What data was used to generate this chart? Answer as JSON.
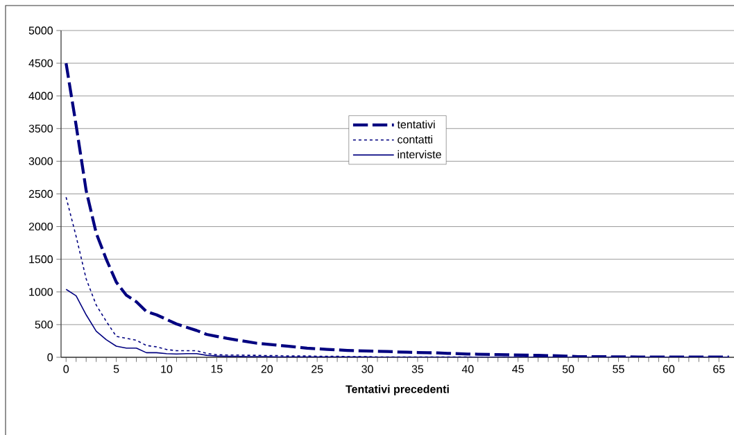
{
  "chart_data": {
    "type": "line",
    "xlabel": "Tentativi precedenti",
    "x": [
      0,
      1,
      2,
      3,
      4,
      5,
      6,
      7,
      8,
      9,
      10,
      11,
      12,
      13,
      14,
      15,
      16,
      17,
      18,
      19,
      20,
      21,
      22,
      23,
      24,
      25,
      26,
      27,
      28,
      29,
      30,
      31,
      32,
      33,
      34,
      35,
      36,
      37,
      38,
      39,
      40,
      41,
      42,
      43,
      44,
      45,
      46,
      47,
      48,
      49,
      50,
      51,
      52,
      53,
      54,
      55,
      56,
      57,
      58,
      59,
      60,
      61,
      62,
      63,
      64,
      65,
      66
    ],
    "series": [
      {
        "name": "tentativi",
        "color": "#000080",
        "line_style": "dashed",
        "values": [
          4500,
          3550,
          2550,
          1900,
          1500,
          1150,
          950,
          850,
          700,
          650,
          580,
          510,
          460,
          410,
          350,
          320,
          290,
          265,
          240,
          215,
          200,
          185,
          170,
          155,
          140,
          130,
          120,
          113,
          105,
          100,
          96,
          92,
          88,
          82,
          78,
          74,
          70,
          67,
          60,
          55,
          50,
          47,
          44,
          41,
          38,
          35,
          32,
          29,
          26,
          22,
          18,
          10,
          10,
          8,
          8,
          6,
          6,
          5,
          5,
          5,
          5,
          5,
          5,
          5,
          5,
          5,
          5
        ]
      },
      {
        "name": "contatti",
        "color": "#000080",
        "line_style": "dotted",
        "values": [
          2450,
          1850,
          1200,
          800,
          550,
          320,
          290,
          260,
          180,
          160,
          120,
          100,
          100,
          100,
          60,
          40,
          35,
          35,
          30,
          30,
          25,
          25,
          20,
          20,
          20,
          15,
          15,
          15,
          10,
          10,
          10,
          5,
          5,
          5,
          5,
          5,
          5,
          5,
          5,
          5,
          5,
          0,
          0,
          0,
          0,
          0,
          0,
          0,
          0,
          0,
          0,
          0,
          0,
          0,
          0,
          0,
          0,
          0,
          0,
          0,
          0,
          0,
          0,
          0,
          0,
          0,
          0
        ]
      },
      {
        "name": "interviste",
        "color": "#000080",
        "line_style": "solid",
        "values": [
          1040,
          940,
          650,
          400,
          270,
          170,
          140,
          140,
          70,
          70,
          55,
          50,
          55,
          55,
          30,
          20,
          15,
          15,
          10,
          10,
          10,
          5,
          5,
          5,
          5,
          5,
          5,
          5,
          5,
          5,
          5,
          0,
          0,
          0,
          0,
          0,
          0,
          0,
          0,
          0,
          0,
          0,
          0,
          0,
          0,
          0,
          0,
          0,
          0,
          0,
          0,
          0,
          0,
          0,
          0,
          0,
          0,
          0,
          0,
          0,
          0,
          0,
          0,
          0,
          0,
          0,
          0
        ]
      }
    ],
    "xlim": [
      -0.5,
      66.5
    ],
    "xticks": [
      0,
      5,
      10,
      15,
      20,
      25,
      30,
      35,
      40,
      45,
      50,
      55,
      60,
      65
    ],
    "ylim": [
      0,
      5000
    ],
    "yticks": [
      0,
      500,
      1000,
      1500,
      2000,
      2500,
      3000,
      3500,
      4000,
      4500,
      5000
    ],
    "grid": "y",
    "legend": "top",
    "marker": "none"
  }
}
